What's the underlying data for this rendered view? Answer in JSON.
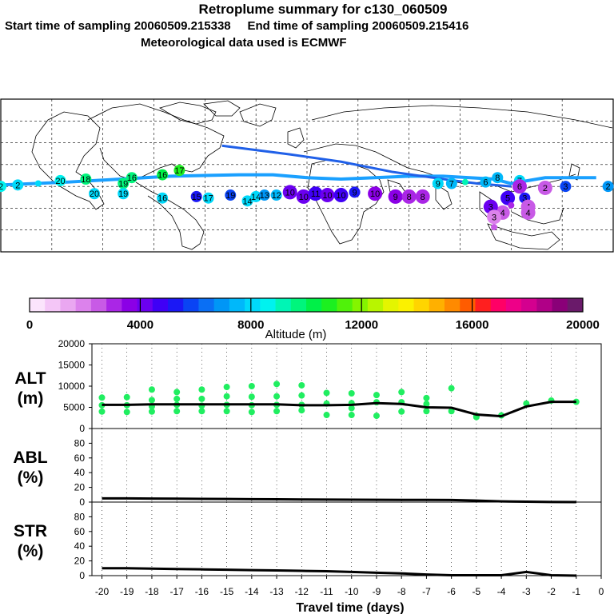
{
  "header": {
    "title": "Retroplume summary for c130_060509",
    "sampling_line": "Start time of sampling 20060509.215338     End time of sampling 20060509.215416",
    "met_line": "Meteorological data used is ECMWF"
  },
  "chart_data": [
    {
      "type": "map",
      "title": "Retroplume trajectory map",
      "color_by": "Altitude (m)",
      "track": [
        [
          -180,
          1
        ],
        [
          -140,
          3
        ],
        [
          -80,
          7
        ],
        [
          -40,
          8
        ],
        [
          -20,
          8
        ],
        [
          0,
          6
        ],
        [
          20,
          5
        ],
        [
          40,
          6
        ],
        [
          60,
          7
        ],
        [
          80,
          7
        ],
        [
          110,
          5
        ],
        [
          120,
          2
        ],
        [
          140,
          6
        ],
        [
          170,
          6
        ]
      ],
      "upper_track": [
        [
          -50,
          28
        ],
        [
          -10,
          22
        ],
        [
          20,
          17
        ],
        [
          50,
          10
        ],
        [
          80,
          5
        ],
        [
          100,
          2
        ],
        [
          120,
          0
        ]
      ],
      "plume_markers": [
        {
          "lon": -180,
          "lat": 0,
          "label": "2",
          "alt": 8500
        },
        {
          "lon": -170,
          "lat": 1,
          "label": "2",
          "alt": 8300
        },
        {
          "lon": -158,
          "lat": 2,
          "label": "",
          "alt": 8200
        },
        {
          "lon": -145,
          "lat": 4,
          "label": "20",
          "alt": 8600
        },
        {
          "lon": -130,
          "lat": 5,
          "label": "18",
          "alt": 9800
        },
        {
          "lon": -125,
          "lat": -5,
          "label": "20",
          "alt": 8200
        },
        {
          "lon": -108,
          "lat": 2,
          "label": "19",
          "alt": 9700
        },
        {
          "lon": -108,
          "lat": -5,
          "label": "19",
          "alt": 8300
        },
        {
          "lon": -103,
          "lat": 6,
          "label": "16",
          "alt": 9900
        },
        {
          "lon": -85,
          "lat": 8,
          "label": "16",
          "alt": 10200
        },
        {
          "lon": -75,
          "lat": 11,
          "label": "17",
          "alt": 10600
        },
        {
          "lon": -85,
          "lat": -8,
          "label": "16",
          "alt": 7800
        },
        {
          "lon": -65,
          "lat": -7,
          "label": "15",
          "alt": 5200
        },
        {
          "lon": -58,
          "lat": -8,
          "label": "17",
          "alt": 7800
        },
        {
          "lon": -45,
          "lat": -6,
          "label": "19",
          "alt": 5600
        },
        {
          "lon": -35,
          "lat": -10,
          "label": "14",
          "alt": 8000
        },
        {
          "lon": -30,
          "lat": -7,
          "label": "14",
          "alt": 7900
        },
        {
          "lon": -25,
          "lat": -6,
          "label": "13",
          "alt": 6700
        },
        {
          "lon": -18,
          "lat": -6,
          "label": "12",
          "alt": 7600
        },
        {
          "lon": -10,
          "lat": -4,
          "label": "10",
          "alt": 4200
        },
        {
          "lon": -2,
          "lat": -7,
          "label": "10",
          "alt": 4400
        },
        {
          "lon": 5,
          "lat": -5,
          "label": "11",
          "alt": 4500
        },
        {
          "lon": 12,
          "lat": -6,
          "label": "10",
          "alt": 4300
        },
        {
          "lon": 20,
          "lat": -6,
          "label": "10",
          "alt": 4700
        },
        {
          "lon": 28,
          "lat": -4,
          "label": "9",
          "alt": 5400
        },
        {
          "lon": 40,
          "lat": -5,
          "label": "10",
          "alt": 3500
        },
        {
          "lon": 52,
          "lat": -7,
          "label": "9",
          "alt": 3400
        },
        {
          "lon": 60,
          "lat": -7,
          "label": "8",
          "alt": 3200
        },
        {
          "lon": 68,
          "lat": -7,
          "label": "8",
          "alt": 3300
        },
        {
          "lon": 77,
          "lat": 2,
          "label": "9",
          "alt": 7800
        },
        {
          "lon": 85,
          "lat": 2,
          "label": "7",
          "alt": 7700
        },
        {
          "lon": 93,
          "lat": 3,
          "label": "",
          "alt": 9200
        },
        {
          "lon": 105,
          "lat": 3,
          "label": "6",
          "alt": 7600
        },
        {
          "lon": 112,
          "lat": 6,
          "label": "8",
          "alt": 7500
        },
        {
          "lon": 125,
          "lat": 4,
          "label": "7",
          "alt": 8200
        },
        {
          "lon": 125,
          "lat": 0,
          "label": "6",
          "alt": 2800
        },
        {
          "lon": 118,
          "lat": -8,
          "label": "5",
          "alt": 4600
        },
        {
          "lon": 128,
          "lat": -8,
          "label": "3",
          "alt": 5100
        },
        {
          "lon": 120,
          "lat": -13,
          "label": "",
          "alt": 3000
        },
        {
          "lon": 130,
          "lat": -14,
          "label": "4",
          "alt": 2700
        },
        {
          "lon": 130,
          "lat": -18,
          "label": "4",
          "alt": 2300
        },
        {
          "lon": 115,
          "lat": -18,
          "label": "4",
          "alt": 2300
        },
        {
          "lon": 108,
          "lat": -14,
          "label": "3",
          "alt": 4100
        },
        {
          "lon": 110,
          "lat": -21,
          "label": "3",
          "alt": 2200
        },
        {
          "lon": 110,
          "lat": -28,
          "label": "",
          "alt": 2300
        },
        {
          "lon": 140,
          "lat": -1,
          "label": "2",
          "alt": 2400
        },
        {
          "lon": 152,
          "lat": 0,
          "label": "3",
          "alt": 5800
        },
        {
          "lon": 177,
          "lat": 0,
          "label": "2",
          "alt": 6700
        }
      ],
      "lon_range": [
        -180,
        180
      ],
      "lat_range": [
        -45,
        60
      ]
    },
    {
      "type": "colorbar",
      "title": "Altitude (m)",
      "tick_labels": [
        "0",
        "4000",
        "8000",
        "12000",
        "16000",
        "20000"
      ],
      "range": [
        0,
        20000
      ],
      "colors": [
        "#fbe4fc",
        "#f4c6f7",
        "#eaa7f1",
        "#dc82ec",
        "#c85ae6",
        "#aa26e6",
        "#8b00e6",
        "#6b00f0",
        "#3f00f6",
        "#1b18f5",
        "#0a44f4",
        "#0a6ff4",
        "#0096f6",
        "#00b8fa",
        "#00d9fa",
        "#00f2ef",
        "#00f5b5",
        "#00f57c",
        "#00f048",
        "#1cf020",
        "#50f20a",
        "#84f500",
        "#b8f500",
        "#e4f500",
        "#fbf100",
        "#ffd500",
        "#ffb000",
        "#ff8a00",
        "#ff5c00",
        "#ff1f1f",
        "#ff0066",
        "#ee0088",
        "#d4008f",
        "#b00087",
        "#8a0078",
        "#6a1a6a"
      ]
    },
    {
      "type": "scatter+line",
      "panel": "ALT",
      "ylabel_top": "ALT",
      "ylabel_unit": "(m)",
      "ylim": [
        0,
        20000
      ],
      "y_ticks": [
        "20000",
        "15000",
        "10000",
        "5000",
        "0"
      ],
      "x": [
        -20,
        -19,
        -18,
        -17,
        -16,
        -15,
        -14,
        -13,
        -12,
        -11,
        -10,
        -9,
        -8,
        -7,
        -6,
        -5,
        -4,
        -3,
        -2,
        -1
      ],
      "median_altitude": [
        5600,
        5600,
        5700,
        5700,
        5700,
        5700,
        5700,
        5700,
        5500,
        5500,
        5600,
        6000,
        5800,
        5000,
        4900,
        3300,
        2900,
        5200,
        6300,
        6300
      ],
      "particle_altitudes": [
        [
          7300,
          5500,
          4000
        ],
        [
          7400,
          5500,
          3900
        ],
        [
          9200,
          6700,
          5200,
          4000
        ],
        [
          8600,
          7000,
          5600,
          4100
        ],
        [
          9200,
          7000,
          5400,
          4100
        ],
        [
          9800,
          7600,
          5600,
          4100
        ],
        [
          10000,
          7500,
          5500,
          3900
        ],
        [
          10500,
          7600,
          5600,
          4100
        ],
        [
          10200,
          7800,
          5600,
          4300
        ],
        [
          8400,
          5900,
          3200
        ],
        [
          8300,
          6000,
          4800,
          3200
        ],
        [
          7900,
          6200,
          3000
        ],
        [
          8600,
          6200,
          4000
        ],
        [
          7200,
          5800,
          4100
        ],
        [
          9500,
          4100
        ],
        [
          3000,
          2700
        ],
        [
          3100
        ],
        [
          5900
        ],
        [
          6600
        ],
        [
          6300
        ]
      ],
      "marker_color": "#20ee60"
    },
    {
      "type": "line",
      "panel": "ABL",
      "ylabel_top": "ABL",
      "ylabel_unit": "(%)",
      "ylim": [
        0,
        100
      ],
      "y_ticks": [
        "80",
        "60",
        "40",
        "20",
        "0"
      ],
      "x": [
        -20,
        -19,
        -18,
        -17,
        -16,
        -15,
        -14,
        -13,
        -12,
        -11,
        -10,
        -9,
        -8,
        -7,
        -6,
        -5,
        -4,
        -3,
        -2,
        -1
      ],
      "values": [
        5,
        5,
        4.8,
        4.6,
        4.4,
        4.2,
        4,
        3.8,
        3.6,
        3.4,
        3.2,
        3.1,
        3,
        3,
        2.8,
        2,
        1,
        0.5,
        0.2,
        0
      ]
    },
    {
      "type": "line",
      "panel": "STR",
      "ylabel_top": "STR",
      "ylabel_unit": "(%)",
      "ylim": [
        0,
        100
      ],
      "y_ticks": [
        "80",
        "60",
        "40",
        "20",
        "0"
      ],
      "xlabel": "Travel time (days)",
      "x_ticks": [
        "-20",
        "-19",
        "-18",
        "-17",
        "-16",
        "-15",
        "-14",
        "-13",
        "-12",
        "-11",
        "-10",
        "-9",
        "-8",
        "-7",
        "-6",
        "-5",
        "-4",
        "-3",
        "-2",
        "-1",
        "0"
      ],
      "x": [
        -20,
        -19,
        -18,
        -17,
        -16,
        -15,
        -14,
        -13,
        -12,
        -11,
        -10,
        -9,
        -8,
        -7,
        -6,
        -5,
        -4,
        -3,
        -2,
        -1
      ],
      "values": [
        10,
        10,
        9.5,
        9,
        8.5,
        8,
        7.5,
        7,
        6.5,
        6,
        5,
        4,
        3,
        1.5,
        0.5,
        0.5,
        0.5,
        5,
        0.5,
        0
      ]
    }
  ]
}
